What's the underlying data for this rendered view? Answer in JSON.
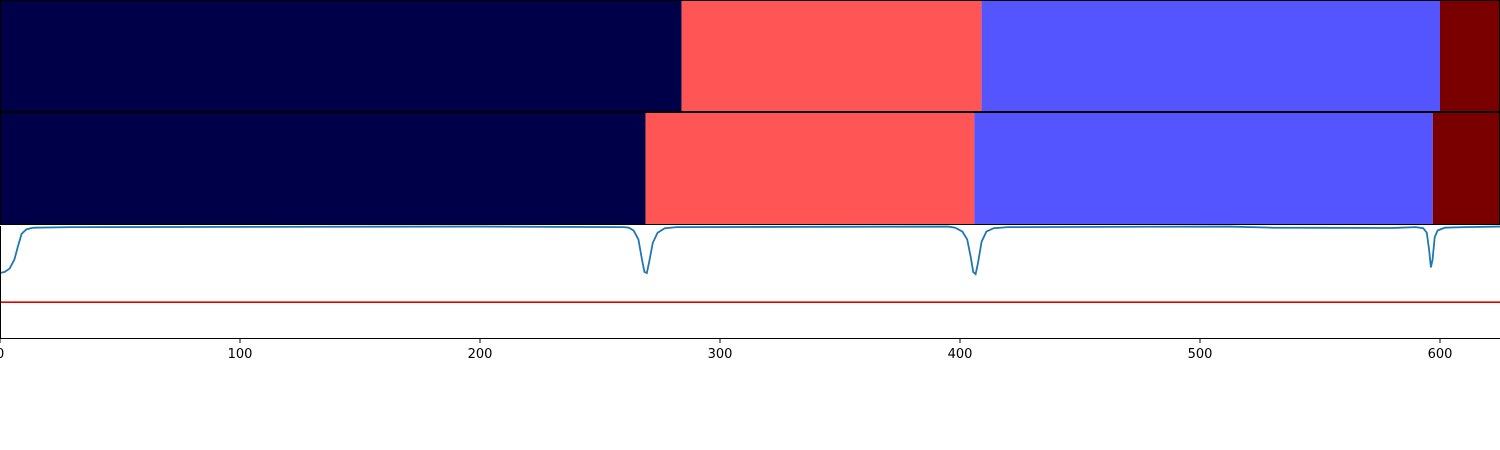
{
  "chart_data": {
    "type": "segmentation-comparison",
    "xlim": [
      0,
      625
    ],
    "xticks": [
      "0",
      "100",
      "200",
      "300",
      "400",
      "500",
      "600"
    ],
    "xtick_values": [
      0,
      100,
      200,
      300,
      400,
      500,
      600
    ],
    "grid": false,
    "legend": "none",
    "rows": [
      {
        "segments": [
          {
            "start": 0,
            "end": 284,
            "color": "#000048"
          },
          {
            "start": 284,
            "end": 409,
            "color": "#ff5555"
          },
          {
            "start": 409,
            "end": 600,
            "color": "#5555ff"
          },
          {
            "start": 600,
            "end": 625,
            "color": "#7a0000"
          }
        ]
      },
      {
        "segments": [
          {
            "start": 0,
            "end": 269,
            "color": "#000048"
          },
          {
            "start": 269,
            "end": 406,
            "color": "#ff5555"
          },
          {
            "start": 406,
            "end": 597,
            "color": "#5555ff"
          },
          {
            "start": 597,
            "end": 625,
            "color": "#7a0000"
          }
        ]
      }
    ],
    "signal": {
      "color": "#1f77b4",
      "ylim": [
        0,
        1
      ],
      "threshold": {
        "value": 0.32,
        "color": "#e00000"
      },
      "points": [
        [
          0,
          0.58
        ],
        [
          2,
          0.59
        ],
        [
          4,
          0.62
        ],
        [
          6,
          0.7
        ],
        [
          7.5,
          0.82
        ],
        [
          9,
          0.93
        ],
        [
          11,
          0.97
        ],
        [
          14,
          0.985
        ],
        [
          30,
          0.99
        ],
        [
          200,
          0.995
        ],
        [
          260,
          0.99
        ],
        [
          262,
          0.985
        ],
        [
          264,
          0.96
        ],
        [
          266,
          0.88
        ],
        [
          267.5,
          0.7
        ],
        [
          268.5,
          0.59
        ],
        [
          269.5,
          0.58
        ],
        [
          270.5,
          0.68
        ],
        [
          272,
          0.85
        ],
        [
          274,
          0.94
        ],
        [
          277,
          0.98
        ],
        [
          282,
          0.99
        ],
        [
          395,
          0.995
        ],
        [
          398,
          0.985
        ],
        [
          401,
          0.95
        ],
        [
          403,
          0.88
        ],
        [
          404.5,
          0.72
        ],
        [
          405.5,
          0.59
        ],
        [
          406.5,
          0.57
        ],
        [
          407.5,
          0.67
        ],
        [
          409,
          0.86
        ],
        [
          411,
          0.95
        ],
        [
          414,
          0.98
        ],
        [
          420,
          0.99
        ],
        [
          512,
          0.995
        ],
        [
          530,
          0.985
        ],
        [
          580,
          0.982
        ],
        [
          590,
          0.99
        ],
        [
          593,
          0.98
        ],
        [
          594.5,
          0.94
        ],
        [
          595.5,
          0.78
        ],
        [
          596.2,
          0.63
        ],
        [
          596.9,
          0.7
        ],
        [
          597.8,
          0.9
        ],
        [
          599,
          0.96
        ],
        [
          602,
          0.985
        ],
        [
          610,
          0.99
        ],
        [
          625,
          0.995
        ]
      ]
    }
  }
}
